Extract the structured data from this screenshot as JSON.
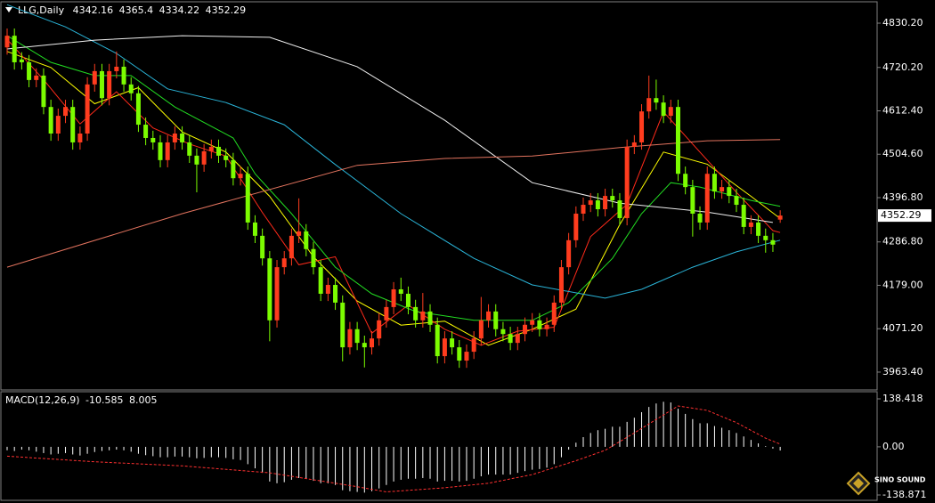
{
  "chart_data": [
    {
      "type": "candlestick",
      "title": "LLG,Daily",
      "up_color": "#ff3c1e",
      "down_color": "#7cfc00",
      "open": [
        4770,
        4799,
        4740,
        4733,
        4689,
        4700,
        4622,
        4556,
        4600,
        4622,
        4534,
        4556,
        4678,
        4711,
        4644,
        4711,
        4722,
        4678,
        4656,
        4578,
        4545,
        4534,
        4490,
        4534,
        4556,
        4534,
        4501,
        4479,
        4512,
        4523,
        4501,
        4490,
        4445,
        4456,
        4335,
        4302,
        4246,
        4092,
        4224,
        4246,
        4302,
        4313,
        4269,
        4224,
        4158,
        4180,
        4136,
        4025,
        4070,
        4036,
        4025,
        4047,
        4092,
        4125,
        4169,
        4158,
        4125,
        4092,
        4114,
        4081,
        4003,
        4047,
        4025,
        3992,
        4014,
        4047,
        4092,
        4114,
        4070,
        4058,
        4036,
        4058,
        4081,
        4092,
        4070,
        4081,
        4136,
        4224,
        4291,
        4357,
        4379,
        4390,
        4368,
        4401,
        4390,
        4346,
        4523,
        4534,
        4611,
        4644,
        4633,
        4600,
        4622,
        4456,
        4423,
        4357,
        4335,
        4456,
        4412,
        4423,
        4401,
        4379,
        4324,
        4335,
        4302,
        4291,
        4342.16
      ],
      "high": [
        4817,
        4817,
        4758,
        4751,
        4718,
        4718,
        4640,
        4618,
        4640,
        4640,
        4574,
        4696,
        4729,
        4729,
        4729,
        4760,
        4740,
        4696,
        4674,
        4596,
        4563,
        4552,
        4552,
        4574,
        4574,
        4552,
        4519,
        4530,
        4541,
        4541,
        4519,
        4508,
        4474,
        4474,
        4353,
        4320,
        4264,
        4242,
        4264,
        4320,
        4395,
        4331,
        4287,
        4242,
        4198,
        4198,
        4154,
        4088,
        4088,
        4054,
        4065,
        4110,
        4143,
        4187,
        4198,
        4176,
        4143,
        4160,
        4132,
        4099,
        4065,
        4065,
        4043,
        4032,
        4065,
        4150,
        4132,
        4132,
        4088,
        4076,
        4076,
        4099,
        4110,
        4110,
        4099,
        4154,
        4242,
        4309,
        4375,
        4397,
        4408,
        4408,
        4419,
        4419,
        4408,
        4541,
        4552,
        4629,
        4700,
        4690,
        4651,
        4640,
        4640,
        4474,
        4441,
        4375,
        4474,
        4474,
        4441,
        4441,
        4419,
        4397,
        4353,
        4353,
        4320,
        4309,
        4365.4
      ],
      "low": [
        4752,
        4715,
        4715,
        4671,
        4671,
        4604,
        4538,
        4538,
        4582,
        4516,
        4516,
        4538,
        4660,
        4626,
        4626,
        4693,
        4660,
        4638,
        4560,
        4527,
        4516,
        4472,
        4472,
        4516,
        4516,
        4483,
        4410,
        4461,
        4494,
        4483,
        4472,
        4427,
        4427,
        4317,
        4284,
        4228,
        4040,
        4074,
        4206,
        4228,
        4284,
        4251,
        4206,
        4140,
        4140,
        4118,
        3990,
        4007,
        4018,
        3975,
        4007,
        4029,
        4074,
        4107,
        4140,
        4107,
        4074,
        4074,
        4063,
        3985,
        3985,
        4007,
        3974,
        3974,
        3996,
        4029,
        4074,
        4052,
        4040,
        4018,
        4018,
        4040,
        4063,
        4052,
        4052,
        4063,
        4118,
        4206,
        4273,
        4339,
        4361,
        4350,
        4350,
        4372,
        4328,
        4328,
        4505,
        4516,
        4593,
        4615,
        4582,
        4582,
        4438,
        4405,
        4300,
        4317,
        4317,
        4394,
        4394,
        4383,
        4361,
        4306,
        4306,
        4284,
        4260,
        4262,
        4334.22
      ],
      "close": [
        4799,
        4733,
        4733,
        4689,
        4700,
        4622,
        4556,
        4600,
        4622,
        4534,
        4556,
        4678,
        4711,
        4644,
        4711,
        4722,
        4678,
        4656,
        4578,
        4545,
        4534,
        4490,
        4534,
        4556,
        4534,
        4501,
        4479,
        4512,
        4523,
        4501,
        4490,
        4445,
        4456,
        4335,
        4302,
        4246,
        4092,
        4224,
        4246,
        4302,
        4313,
        4269,
        4224,
        4158,
        4180,
        4136,
        4025,
        4070,
        4036,
        4025,
        4047,
        4092,
        4125,
        4169,
        4158,
        4125,
        4092,
        4114,
        4081,
        4003,
        4047,
        4025,
        3992,
        4014,
        4047,
        4092,
        4114,
        4070,
        4058,
        4036,
        4058,
        4081,
        4092,
        4070,
        4081,
        4136,
        4224,
        4291,
        4357,
        4379,
        4390,
        4368,
        4401,
        4390,
        4346,
        4523,
        4534,
        4611,
        4644,
        4633,
        4600,
        4622,
        4456,
        4423,
        4357,
        4335,
        4456,
        4412,
        4423,
        4401,
        4379,
        4324,
        4335,
        4302,
        4291,
        4280,
        4352.29
      ],
      "overlays": [
        {
          "color": "#ffff00",
          "x": [
            0,
            6,
            12,
            18,
            24,
            30,
            36,
            42,
            48,
            54,
            60,
            66,
            72,
            78,
            84,
            90,
            96,
            102,
            106
          ],
          "values": [
            4760,
            4720,
            4630,
            4670,
            4560,
            4510,
            4400,
            4250,
            4140,
            4080,
            4090,
            4030,
            4070,
            4120,
            4330,
            4510,
            4480,
            4400,
            4345
          ]
        },
        {
          "color": "#ff2a1a",
          "x": [
            0,
            5,
            10,
            15,
            20,
            25,
            30,
            35,
            40,
            45,
            50,
            55,
            60,
            65,
            70,
            75,
            80,
            85,
            90,
            95,
            100,
            105,
            106
          ],
          "values": [
            4790,
            4690,
            4580,
            4660,
            4570,
            4530,
            4500,
            4360,
            4230,
            4250,
            4060,
            4130,
            4070,
            4030,
            4065,
            4075,
            4300,
            4380,
            4610,
            4510,
            4410,
            4315,
            4310
          ]
        },
        {
          "color": "#22dd22",
          "x": [
            0,
            6,
            12,
            17,
            23,
            31,
            34,
            39,
            45,
            50,
            56,
            64,
            72,
            77,
            83,
            87,
            91,
            95,
            102,
            106
          ],
          "values": [
            4799,
            4733,
            4700,
            4700,
            4622,
            4545,
            4456,
            4357,
            4224,
            4158,
            4114,
            4092,
            4092,
            4136,
            4246,
            4357,
            4434,
            4423,
            4390,
            4375
          ]
        },
        {
          "color": "#2ab4d8",
          "x": [
            0,
            8,
            15,
            22,
            30,
            38,
            45,
            54,
            64,
            72,
            82,
            87,
            94,
            100,
            106
          ],
          "values": [
            4876,
            4821,
            4755,
            4667,
            4633,
            4578,
            4479,
            4357,
            4246,
            4180,
            4147,
            4169,
            4224,
            4262,
            4291
          ]
        },
        {
          "color": "#f0f0f0",
          "x": [
            0,
            12,
            24,
            36,
            48,
            60,
            72,
            84,
            96,
            105
          ],
          "values": [
            4766,
            4788,
            4799,
            4795,
            4722,
            4589,
            4434,
            4383,
            4361,
            4335
          ]
        },
        {
          "color": "#e2735e",
          "x": [
            0,
            24,
            48,
            60,
            72,
            84,
            96,
            106
          ],
          "values": [
            4224,
            4357,
            4477,
            4494,
            4500,
            4521,
            4538,
            4541
          ]
        }
      ],
      "ylim": [
        3921.3,
        4881.1
      ],
      "yticks": [
        {
          "value": 4830.2,
          "label": "4830.20"
        },
        {
          "value": 4720.2,
          "label": "4720.20"
        },
        {
          "value": 4612.4,
          "label": "4612.40"
        },
        {
          "value": 4504.6,
          "label": "4504.60"
        },
        {
          "value": 4396.8,
          "label": "4396.80"
        },
        {
          "value": 4286.8,
          "label": "4286.80"
        },
        {
          "value": 4179,
          "label": "4179.00"
        },
        {
          "value": 4071.2,
          "label": "4071.20"
        },
        {
          "value": 3963.4,
          "label": "3963.40"
        }
      ]
    },
    {
      "type": "macd",
      "title": "MACD(12,26,9)",
      "color": "#ffffff",
      "values": [
        -10,
        -12,
        -8,
        -10,
        -14,
        -18,
        -22,
        -20,
        -18,
        -22,
        -25,
        -20,
        -15,
        -12,
        -10,
        -8,
        -10,
        -14,
        -20,
        -24,
        -27,
        -30,
        -30,
        -28,
        -28,
        -30,
        -33,
        -32,
        -30,
        -30,
        -32,
        -36,
        -38,
        -50,
        -62,
        -75,
        -100,
        -105,
        -102,
        -95,
        -90,
        -92,
        -98,
        -105,
        -105,
        -110,
        -125,
        -128,
        -130,
        -132,
        -128,
        -120,
        -110,
        -100,
        -95,
        -92,
        -92,
        -90,
        -92,
        -100,
        -98,
        -98,
        -100,
        -98,
        -92,
        -85,
        -80,
        -80,
        -80,
        -80,
        -75,
        -70,
        -66,
        -64,
        -60,
        -50,
        -30,
        -8,
        12,
        28,
        40,
        48,
        52,
        58,
        58,
        72,
        84,
        100,
        115,
        125,
        130,
        128,
        110,
        95,
        80,
        68,
        68,
        60,
        55,
        48,
        40,
        30,
        20,
        10,
        2,
        -5,
        -10.585
      ],
      "signal": {
        "color": "#ff3030",
        "x": [
          0,
          12,
          24,
          36,
          48,
          52,
          60,
          66,
          72,
          78,
          82,
          86,
          92,
          96,
          100,
          104,
          106
        ],
        "values": [
          -27,
          -43,
          -55,
          -75,
          -115,
          -130,
          -118,
          -105,
          -80,
          -40,
          -10,
          40,
          118,
          105,
          70,
          25,
          8.005
        ]
      },
      "ylim": [
        -151.7,
        156.4
      ],
      "yticks": [
        138.418,
        {
          "value": 0,
          "label": "0.00"
        },
        -138.871
      ]
    }
  ],
  "watermark": "SINO SOUND"
}
